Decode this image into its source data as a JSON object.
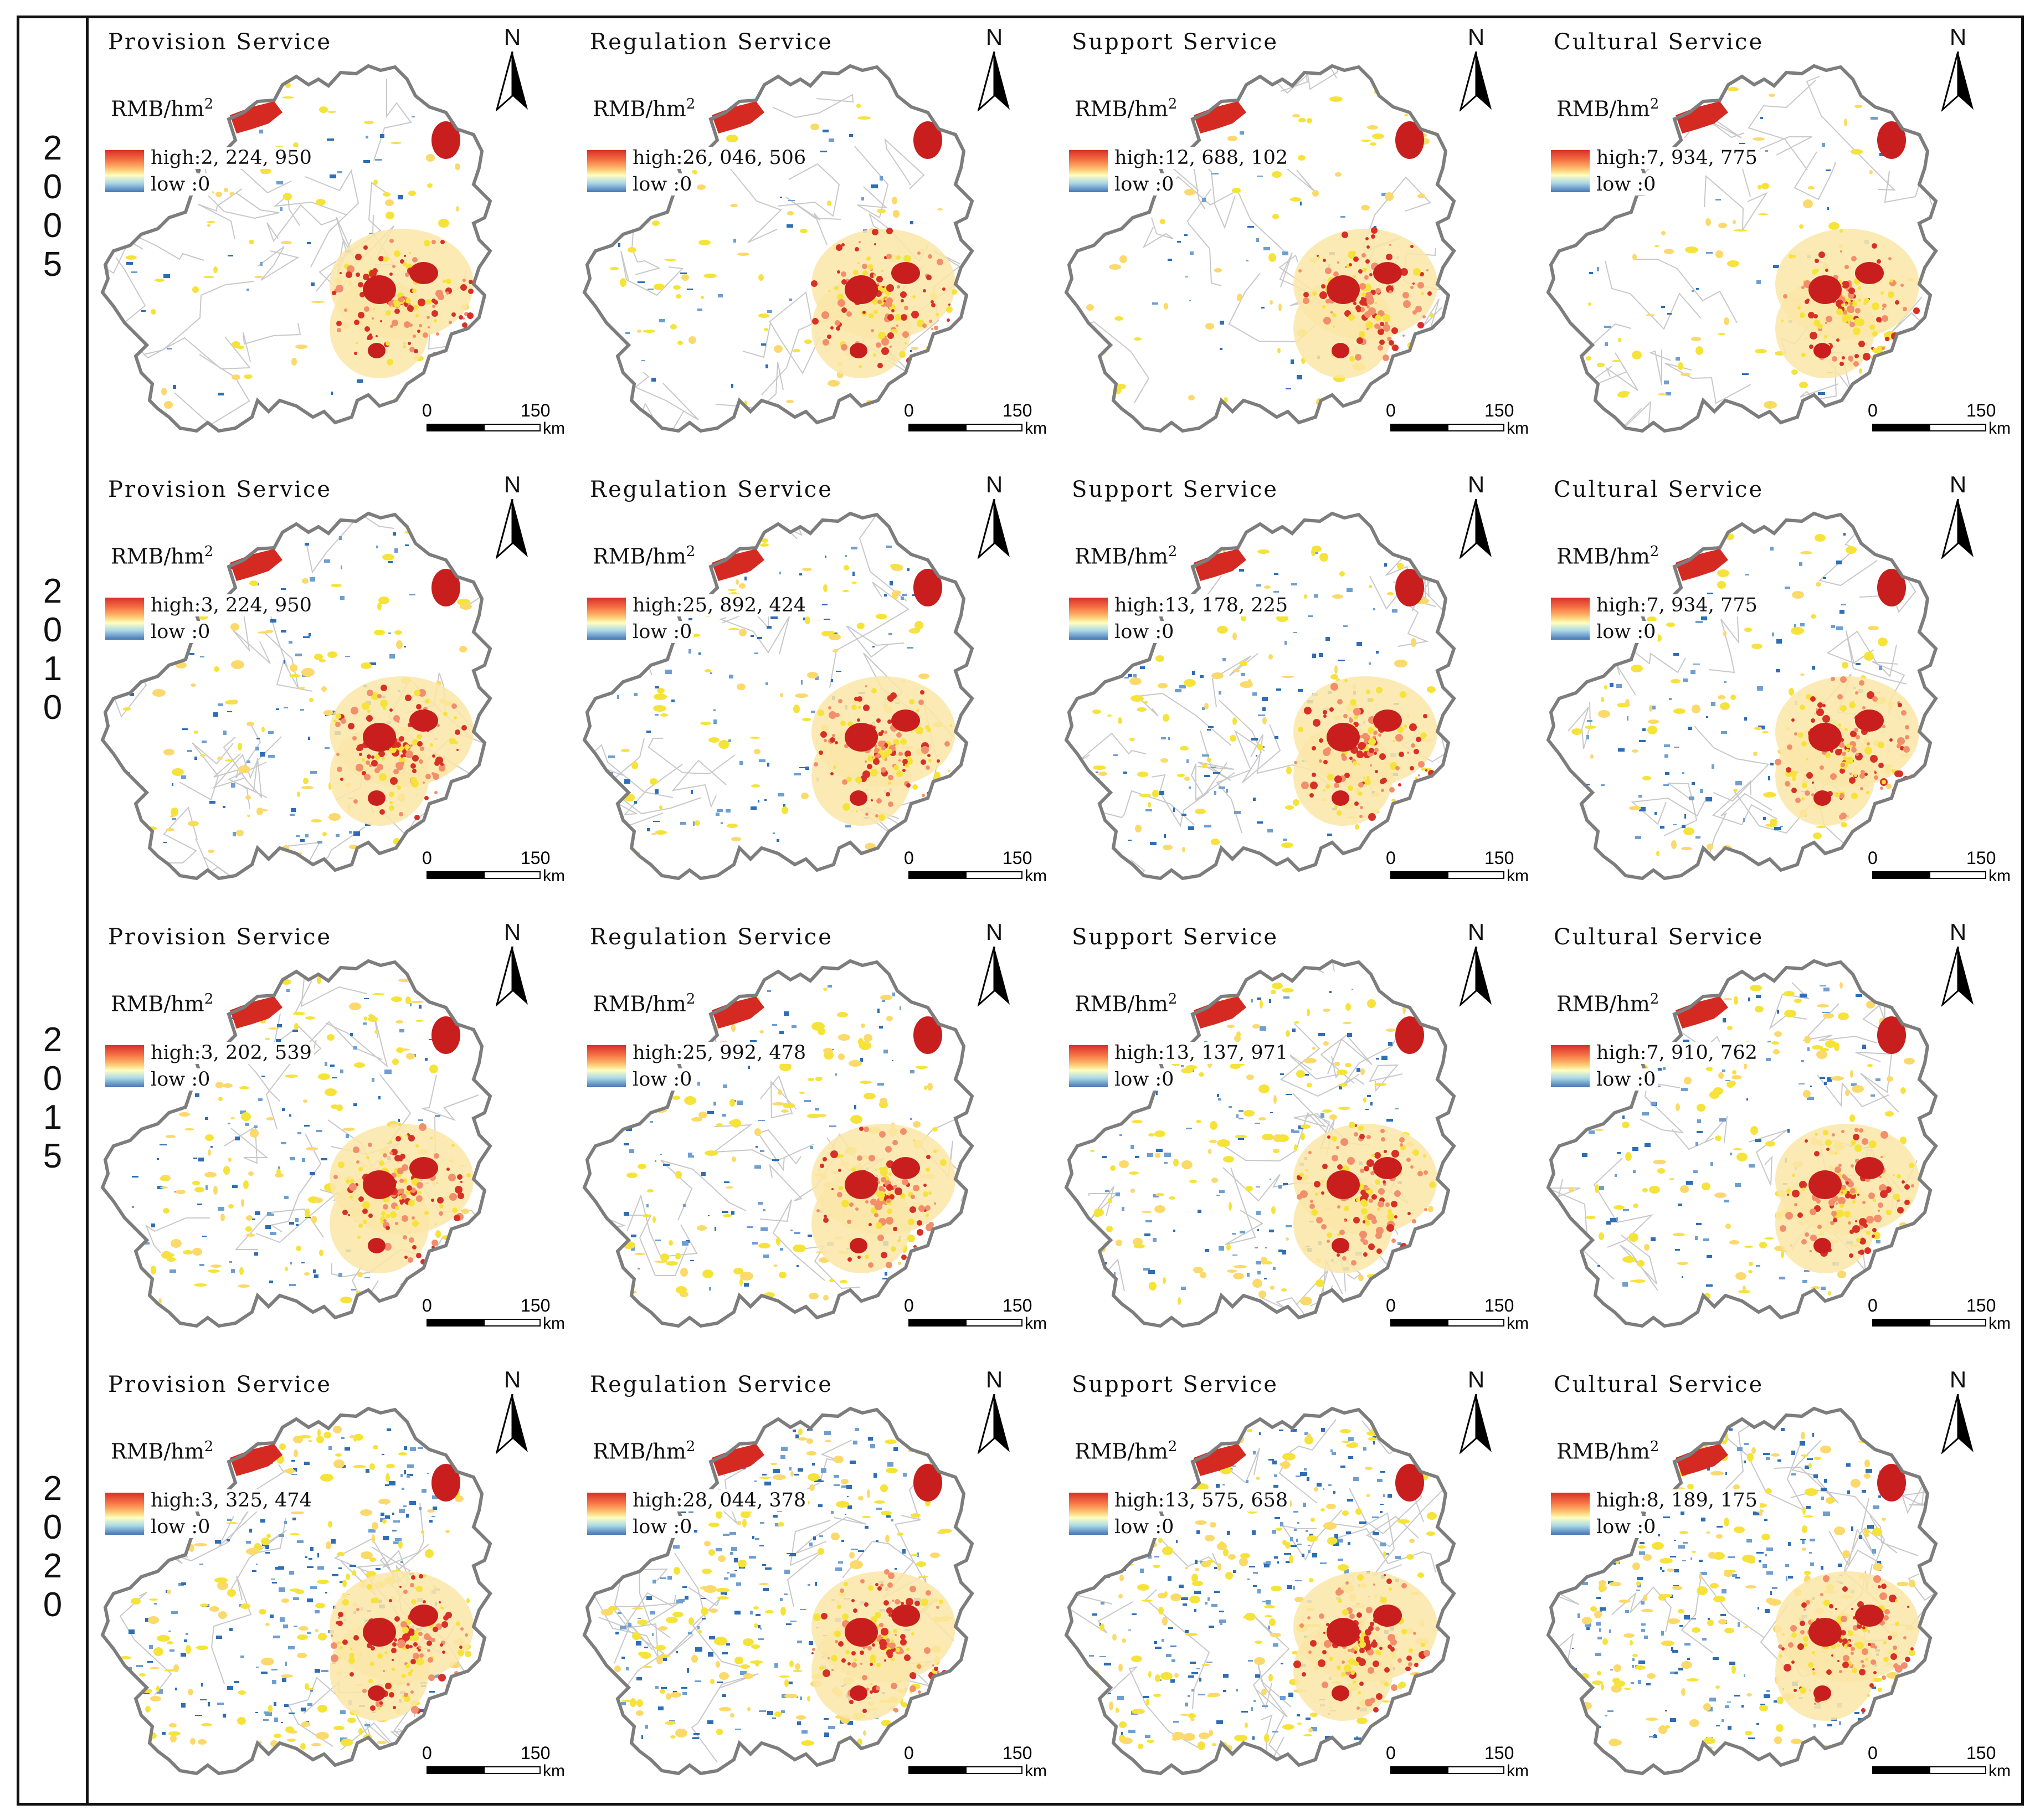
{
  "years": [
    {
      "year": "2005",
      "digits": [
        "2",
        "0",
        "0",
        "5"
      ]
    },
    {
      "year": "2010",
      "digits": [
        "2",
        "0",
        "1",
        "0"
      ]
    },
    {
      "year": "2015",
      "digits": [
        "2",
        "0",
        "1",
        "5"
      ]
    },
    {
      "year": "2020",
      "digits": [
        "2",
        "0",
        "2",
        "0"
      ]
    }
  ],
  "services": [
    "Provision Service",
    "Regulation Service",
    "Support Service",
    "Cultural Service"
  ],
  "unit": "RMB/hm",
  "unit_sup": "2",
  "legend_high_prefix": "high:",
  "legend_low": "low :0",
  "legend_colors": {
    "high": "#d73027",
    "mid": "#ffffbf",
    "low": "#4575b4"
  },
  "north_label": "N",
  "scale": {
    "start": "0",
    "end": "150",
    "unit": "km"
  },
  "highs": [
    [
      "2, 224, 950",
      "26, 046, 506",
      "12, 688, 102",
      "7, 934, 775"
    ],
    [
      "3, 224, 950",
      "25, 892, 424",
      "13, 178, 225",
      "7, 934, 775"
    ],
    [
      "3, 202, 539",
      "25, 992, 478",
      "13, 137, 971",
      "7, 910, 762"
    ],
    [
      "3, 325, 474",
      "28, 044, 378",
      "13, 575, 658",
      "8, 189, 175"
    ]
  ],
  "rows": [
    {
      "year": "2005",
      "panels": [
        {
          "title": "Provision Service",
          "high": "2, 224, 950"
        },
        {
          "title": "Regulation Service",
          "high": "26, 046, 506"
        },
        {
          "title": "Support Service",
          "high": "12, 688, 102"
        },
        {
          "title": "Cultural Service",
          "high": "7, 934, 775"
        }
      ]
    },
    {
      "year": "2010",
      "panels": [
        {
          "title": "Provision Service",
          "high": "3, 224, 950"
        },
        {
          "title": "Regulation Service",
          "high": "25, 892, 424"
        },
        {
          "title": "Support Service",
          "high": "13, 178, 225"
        },
        {
          "title": "Cultural Service",
          "high": "7, 934, 775"
        }
      ]
    },
    {
      "year": "2015",
      "panels": [
        {
          "title": "Provision Service",
          "high": "3, 202, 539"
        },
        {
          "title": "Regulation Service",
          "high": "25, 992, 478"
        },
        {
          "title": "Support Service",
          "high": "13, 137, 971"
        },
        {
          "title": "Cultural Service",
          "high": "7, 910, 762"
        }
      ]
    },
    {
      "year": "2020",
      "panels": [
        {
          "title": "Provision Service",
          "high": "3, 325, 474"
        },
        {
          "title": "Regulation Service",
          "high": "28, 044, 378"
        },
        {
          "title": "Support Service",
          "high": "13, 575, 658"
        },
        {
          "title": "Cultural Service",
          "high": "8, 189, 175"
        }
      ]
    }
  ]
}
